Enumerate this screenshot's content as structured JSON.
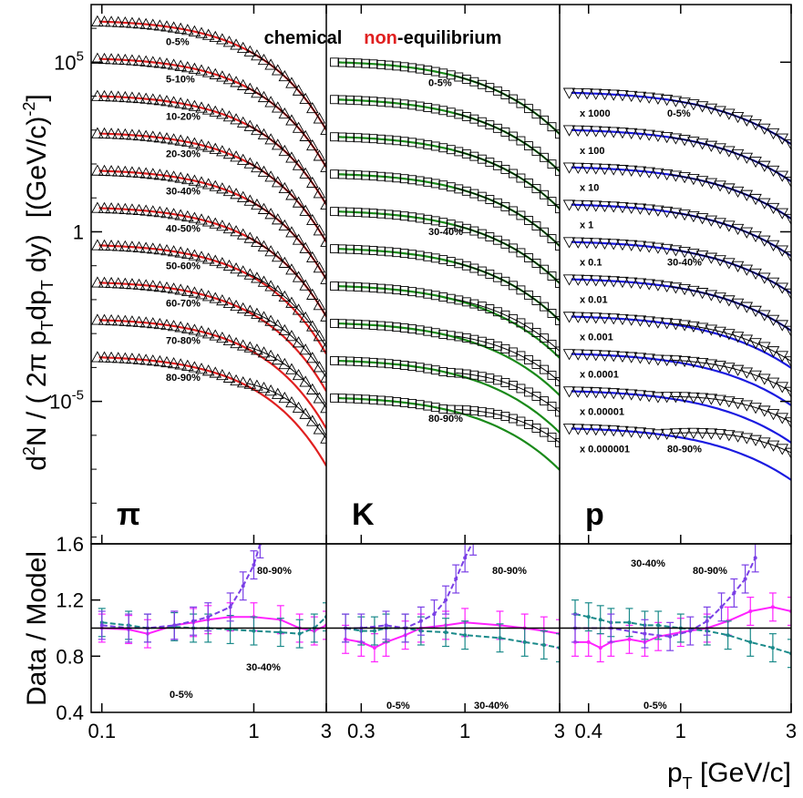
{
  "chart_data": {
    "type": "line",
    "title_parts": [
      {
        "text": "chemical",
        "color": "#000000"
      },
      {
        "text": "non",
        "color": "#e02020"
      },
      {
        "text": "-equilibrium",
        "color": "#000000"
      }
    ],
    "ylabel_top": "d²N / ( 2π p_T dp_T dy)   [(GeV/c)^-2]",
    "ylabel_top_parts": {
      "d": "d",
      "two": "2",
      "n": "N / ( 2π p",
      "t1": "T",
      "dp": "dp",
      "t2": "T",
      "dy": " dy)",
      "unit": "[(GeV/c)",
      "exp": "-2",
      "close": "]"
    },
    "ylabel_bottom": "Data / Model",
    "xlabel": "p_T [GeV/c]",
    "xlabel_parts": {
      "p": "p",
      "t": "T",
      "unit": " [GeV/c]"
    },
    "top_yticks": [
      {
        "label_base": "10",
        "label_exp": "5",
        "value_log10": 5
      },
      {
        "label_base": "1",
        "label_exp": "",
        "value_log10": 0
      },
      {
        "label_base": "10",
        "label_exp": "-5",
        "value_log10": -5
      }
    ],
    "top_ylim_log10": [
      -9.2,
      6.7
    ],
    "bottom_yticks": [
      "0.4",
      "0.8",
      "1.2",
      "1.6"
    ],
    "bottom_ylim": [
      0.4,
      1.6
    ],
    "ratio_reference": 1.0,
    "panels": [
      {
        "id": "pion",
        "symbol": "π",
        "marker": "triangle-up",
        "fit_color": "#e02020",
        "xlim": [
          0.085,
          3.0
        ],
        "xticks": [
          {
            "label": "0.1",
            "value": 0.1
          },
          {
            "label": "1",
            "value": 1
          },
          {
            "label": "3",
            "value": 3
          }
        ],
        "centralities": [
          "0-5%",
          "5-10%",
          "10-20%",
          "20-30%",
          "30-40%",
          "40-50%",
          "50-60%",
          "60-70%",
          "70-80%",
          "80-90%"
        ],
        "spectra_log10_at_low_pt": [
          6.2,
          5.1,
          4.0,
          2.9,
          1.8,
          0.7,
          -0.4,
          -1.5,
          -2.6,
          -3.7
        ],
        "ratio_labels": [
          "80-90%",
          "0-5%",
          "30-40%"
        ],
        "ratio_series": [
          {
            "name": "0-5%",
            "color": "#ff22ff",
            "x": [
              0.1,
              0.15,
              0.2,
              0.3,
              0.4,
              0.5,
              0.7,
              1.0,
              1.5,
              2.0,
              2.5,
              3.0
            ],
            "y": [
              1.0,
              0.99,
              0.96,
              1.02,
              1.04,
              1.06,
              1.08,
              1.08,
              1.06,
              1.0,
              0.98,
              1.02
            ]
          },
          {
            "name": "30-40%",
            "color": "#1a8a8a",
            "x": [
              0.1,
              0.15,
              0.2,
              0.3,
              0.4,
              0.5,
              0.7,
              1.0,
              1.5,
              2.0,
              2.5,
              3.0
            ],
            "y": [
              1.04,
              1.02,
              1.0,
              1.01,
              1.0,
              1.0,
              0.99,
              0.98,
              0.97,
              0.96,
              1.0,
              1.08
            ]
          },
          {
            "name": "80-90%",
            "color": "#7a3fe6",
            "x": [
              0.1,
              0.15,
              0.2,
              0.3,
              0.4,
              0.5,
              0.7,
              0.85,
              1.0,
              1.1
            ],
            "y": [
              1.02,
              1.0,
              1.0,
              1.02,
              1.05,
              1.08,
              1.15,
              1.3,
              1.45,
              1.6
            ]
          }
        ]
      },
      {
        "id": "kaon",
        "symbol": "K",
        "marker": "square",
        "fit_color": "#1a8a1a",
        "xlim": [
          0.2,
          3.0
        ],
        "xticks": [
          {
            "label": "0.3",
            "value": 0.3
          },
          {
            "label": "1",
            "value": 1
          },
          {
            "label": "3",
            "value": 3
          }
        ],
        "centralities": [
          "0-5%",
          "",
          "",
          "",
          "30-40%",
          "",
          "",
          "",
          "",
          "80-90%"
        ],
        "spectra_log10_at_low_pt": [
          5.0,
          3.9,
          2.8,
          1.7,
          0.6,
          -0.5,
          -1.6,
          -2.7,
          -3.8,
          -4.9
        ],
        "ratio_labels": [
          "80-90%",
          "0-5%",
          "30-40%"
        ],
        "ratio_series": [
          {
            "name": "0-5%",
            "color": "#ff22ff",
            "x": [
              0.25,
              0.3,
              0.35,
              0.4,
              0.5,
              0.6,
              0.8,
              1.0,
              1.5,
              2.0,
              2.5,
              3.0
            ],
            "y": [
              0.92,
              0.9,
              0.86,
              0.9,
              0.95,
              1.0,
              1.02,
              1.04,
              1.02,
              1.0,
              0.98,
              0.96
            ]
          },
          {
            "name": "30-40%",
            "color": "#1a8a8a",
            "x": [
              0.25,
              0.3,
              0.35,
              0.4,
              0.5,
              0.6,
              0.8,
              1.0,
              1.5,
              2.0,
              2.5,
              3.0
            ],
            "y": [
              1.0,
              0.98,
              0.98,
              1.0,
              1.0,
              0.98,
              0.97,
              0.95,
              0.93,
              0.9,
              0.88,
              0.86
            ]
          },
          {
            "name": "80-90%",
            "color": "#7a3fe6",
            "x": [
              0.25,
              0.3,
              0.4,
              0.5,
              0.6,
              0.7,
              0.8,
              0.9,
              1.0,
              1.1
            ],
            "y": [
              1.0,
              1.0,
              1.02,
              1.0,
              1.05,
              1.1,
              1.2,
              1.35,
              1.5,
              1.62
            ]
          }
        ]
      },
      {
        "id": "proton",
        "symbol": "p",
        "marker": "triangle-down",
        "fit_color": "#1a1ae0",
        "xlim": [
          0.3,
          3.0
        ],
        "xticks": [
          {
            "label": "0.4",
            "value": 0.4
          },
          {
            "label": "1",
            "value": 1
          },
          {
            "label": "3",
            "value": 3
          }
        ],
        "centralities": [
          "0-5%",
          "",
          "",
          "",
          "30-40%",
          "",
          "",
          "",
          "",
          "80-90%"
        ],
        "scale_factors": [
          "x 1000",
          "x 100",
          "x 10",
          "x 1",
          "x 0.1",
          "x 0.01",
          "x 0.001",
          "x 0.0001",
          "x 0.00001",
          "x 0.000001"
        ],
        "spectra_log10_at_low_pt": [
          4.1,
          3.0,
          1.9,
          0.8,
          -0.3,
          -1.4,
          -2.5,
          -3.6,
          -4.7,
          -5.8
        ],
        "ratio_labels": [
          "80-90%",
          "30-40%",
          "0-5%"
        ],
        "ratio_series": [
          {
            "name": "0-5%",
            "color": "#ff22ff",
            "x": [
              0.35,
              0.4,
              0.45,
              0.5,
              0.6,
              0.7,
              0.8,
              1.0,
              1.3,
              1.6,
              2.0,
              2.5,
              3.0
            ],
            "y": [
              0.9,
              0.9,
              0.86,
              0.9,
              0.92,
              0.9,
              0.94,
              0.97,
              1.0,
              1.05,
              1.12,
              1.15,
              1.12
            ]
          },
          {
            "name": "30-40%",
            "color": "#1a8a8a",
            "x": [
              0.35,
              0.4,
              0.45,
              0.5,
              0.6,
              0.7,
              0.8,
              1.0,
              1.3,
              1.6,
              2.0,
              2.5,
              3.0
            ],
            "y": [
              1.1,
              1.08,
              1.06,
              1.04,
              1.04,
              1.02,
              1.02,
              1.0,
              0.98,
              0.95,
              0.9,
              0.86,
              0.82
            ]
          },
          {
            "name": "80-90%",
            "color": "#7a3fe6",
            "x": [
              0.35,
              0.5,
              0.7,
              0.9,
              1.1,
              1.3,
              1.5,
              1.7,
              1.9,
              2.1
            ],
            "y": [
              1.0,
              1.0,
              0.96,
              0.94,
              0.98,
              1.05,
              1.15,
              1.25,
              1.35,
              1.5
            ]
          }
        ]
      }
    ]
  }
}
